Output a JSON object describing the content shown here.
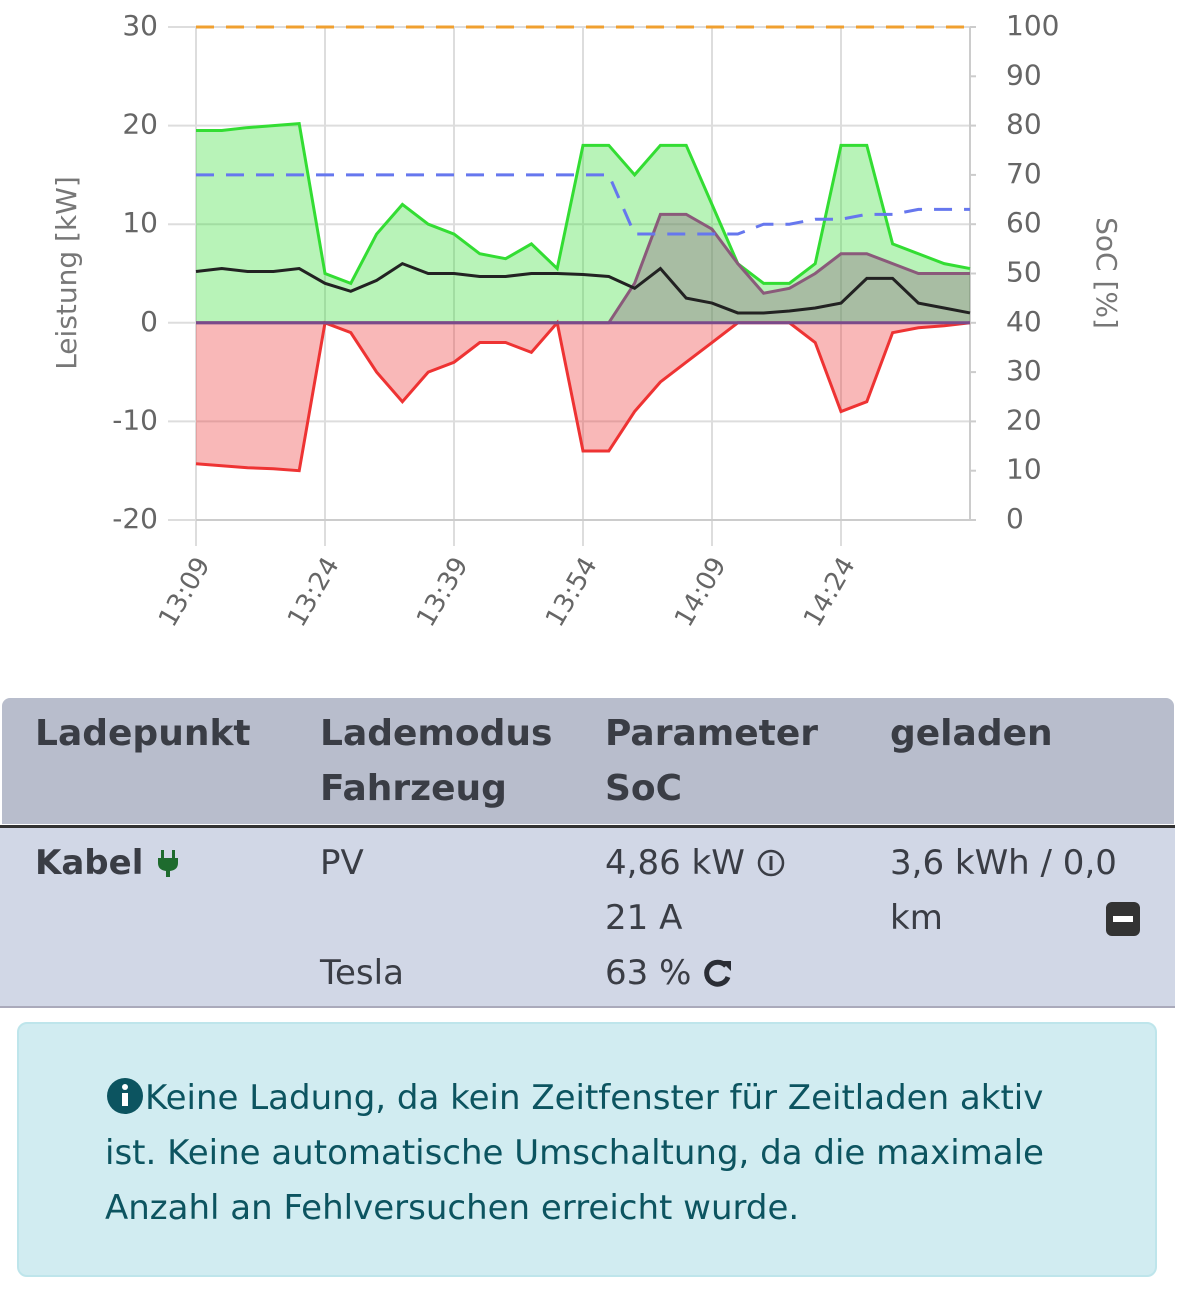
{
  "chart_data": {
    "type": "line",
    "y_label": "Leistung [kW]",
    "y2_label": "SoC [%]",
    "x": [
      "13:09",
      "13:12",
      "13:15",
      "13:18",
      "13:21",
      "13:24",
      "13:27",
      "13:30",
      "13:33",
      "13:36",
      "13:39",
      "13:42",
      "13:45",
      "13:48",
      "13:51",
      "13:54",
      "13:57",
      "14:00",
      "14:03",
      "14:06",
      "14:09",
      "14:12",
      "14:15",
      "14:18",
      "14:21",
      "14:24",
      "14:27",
      "14:30",
      "14:33",
      "14:36",
      "14:39"
    ],
    "xlim": [
      "13:09",
      "14:39"
    ],
    "xticks": [
      "13:09",
      "13:24",
      "13:39",
      "13:54",
      "14:09",
      "14:24"
    ],
    "ylim": [
      -20,
      30
    ],
    "yticks": [
      -20,
      -10,
      0,
      10,
      20,
      30
    ],
    "y2lim": [
      0,
      100
    ],
    "y2ticks": [
      0,
      10,
      20,
      30,
      40,
      50,
      60,
      70,
      80,
      90,
      100
    ],
    "grid": true,
    "series": [
      {
        "color": "#33dd33",
        "fill": true,
        "values": [
          19.5,
          19.5,
          19.8,
          20,
          20.2,
          5,
          4,
          9,
          12,
          10,
          9,
          7,
          6.5,
          8,
          5.5,
          18,
          18,
          15,
          18,
          18,
          12,
          6,
          4,
          4,
          6,
          18,
          18,
          8,
          7,
          6,
          5.5
        ]
      },
      {
        "color": "#ee3333",
        "fill": true,
        "values": [
          -14.3,
          -14.5,
          -14.7,
          -14.8,
          -15,
          0,
          -1,
          -5,
          -8,
          -5,
          -4,
          -2,
          -2,
          -3,
          0,
          -13,
          -13,
          -9,
          -6,
          -4,
          -2,
          0,
          0,
          0,
          -2,
          -9,
          -8,
          -1,
          -0.5,
          -0.3,
          0
        ]
      },
      {
        "color": "#8a5a7a",
        "fill": true,
        "values": [
          0,
          0,
          0,
          0,
          0,
          0,
          0,
          0,
          0,
          0,
          0,
          0,
          0,
          0,
          0,
          0,
          0,
          4,
          11,
          11,
          9.5,
          6,
          3,
          3.5,
          5,
          7,
          7,
          6,
          5,
          5,
          5
        ]
      },
      {
        "color": "#222222",
        "fill": false,
        "values": [
          5.2,
          5.5,
          5.2,
          5.2,
          5.5,
          4,
          3.2,
          4.3,
          6,
          5,
          5,
          4.7,
          4.7,
          5,
          5,
          4.9,
          4.7,
          3.5,
          5.5,
          2.5,
          2,
          1,
          1,
          1.2,
          1.5,
          2,
          4.5,
          4.5,
          2,
          1.5,
          1
        ]
      },
      {
        "color": "#6677ee",
        "fill": false,
        "axis": "y2",
        "line_style": "dashed",
        "values": [
          70,
          70,
          70,
          70,
          70,
          70,
          70,
          70,
          70,
          70,
          70,
          70,
          70,
          70,
          70,
          70,
          70,
          58,
          58,
          58,
          58,
          58,
          60,
          60,
          61,
          61,
          62,
          62,
          63,
          63,
          63
        ]
      },
      {
        "color": "#f0a030",
        "fill": false,
        "axis": "y2",
        "line_style": "dashed",
        "values": [
          100,
          100,
          100,
          100,
          100,
          100,
          100,
          100,
          100,
          100,
          100,
          100,
          100,
          100,
          100,
          100,
          100,
          100,
          100,
          100,
          100,
          100,
          100,
          100,
          100,
          100,
          100,
          100,
          100,
          100,
          100
        ]
      }
    ]
  },
  "table": {
    "headers": [
      [
        "Ladepunkt"
      ],
      [
        "Lademodus",
        "Fahrzeug"
      ],
      [
        "Parameter",
        "SoC"
      ],
      [
        "geladen"
      ]
    ],
    "row": {
      "name": "Kabel",
      "mode": "PV",
      "power": "4,86 kW",
      "current": "21 A",
      "charged": "3,6 kWh / 0,0 km",
      "vehicle": "Tesla",
      "soc": "63 %"
    }
  },
  "alert": "Keine Ladung, da kein Zeitfenster für Zeitladen aktiv ist. Keine automatische Umschaltung, da die maximale Anzahl an Fehlversuchen erreicht wurde."
}
